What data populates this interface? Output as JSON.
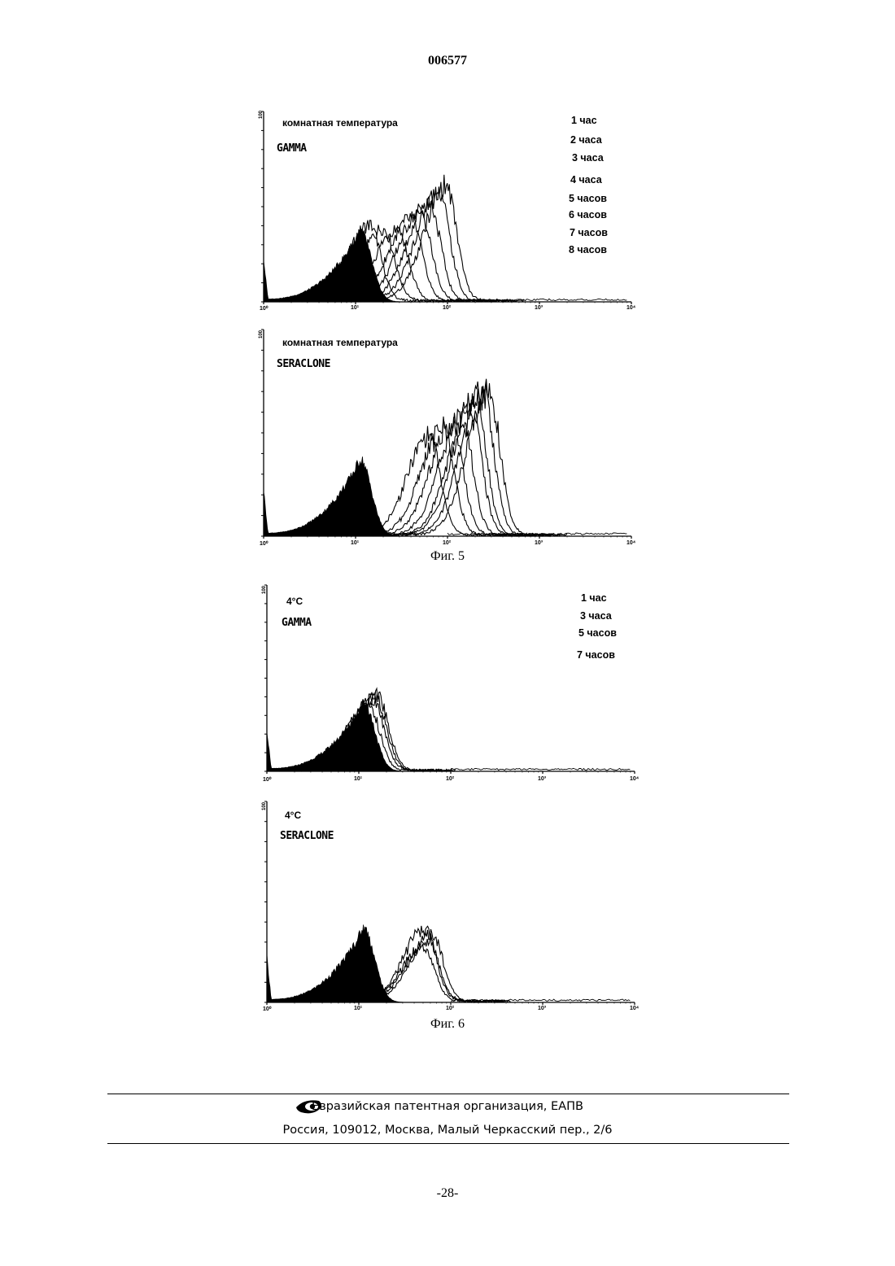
{
  "header": {
    "doc_number": "006577"
  },
  "figures": [
    {
      "caption": "Фиг. 5",
      "panels": [
        {
          "condition": "комнатная температура",
          "sample": "GAMMA",
          "y_top_label": "100",
          "legend": [
            "1 час",
            "2 часа",
            "3 часа",
            "4 часа",
            "5 часов",
            "6 часов",
            "7 часов",
            "8 часов"
          ]
        },
        {
          "condition": "комнатная температура",
          "sample": "SERACLONE",
          "y_top_label": "100",
          "legend": []
        }
      ]
    },
    {
      "caption": "Фиг. 6",
      "panels": [
        {
          "condition": "4°C",
          "sample": "GAMMA",
          "y_top_label": "100",
          "legend": [
            "1 час",
            "3 часа",
            "5 часов",
            "7 часов"
          ]
        },
        {
          "condition": "4°C",
          "sample": "SERACLONE",
          "y_top_label": "100",
          "legend": []
        }
      ]
    }
  ],
  "axis": {
    "tick_labels": [
      "10⁰",
      "10¹",
      "10²",
      "10³",
      "10⁴"
    ]
  },
  "chart_data": [
    {
      "type": "area",
      "scale": "log",
      "xlim": [
        1,
        10000
      ],
      "ylim": [
        0,
        100
      ],
      "control_peak_log": 1.05,
      "series_peaks_log": [
        1.15,
        1.3,
        1.45,
        1.6,
        1.7,
        1.8,
        1.9,
        1.98
      ],
      "series_heights": [
        0.4,
        0.38,
        0.38,
        0.43,
        0.47,
        0.52,
        0.58,
        0.6
      ]
    },
    {
      "type": "area",
      "scale": "log",
      "xlim": [
        1,
        10000
      ],
      "ylim": [
        0,
        100
      ],
      "control_peak_log": 1.05,
      "series_peaks_log": [
        1.8,
        1.95,
        2.05,
        2.15,
        2.25,
        2.3,
        2.38,
        2.45
      ],
      "series_heights": [
        0.48,
        0.52,
        0.54,
        0.57,
        0.62,
        0.66,
        0.7,
        0.7
      ]
    },
    {
      "type": "area",
      "scale": "log",
      "xlim": [
        1,
        10000
      ],
      "ylim": [
        0,
        100
      ],
      "control_peak_log": 1.05,
      "series_peaks_log": [
        1.1,
        1.15,
        1.18,
        1.2
      ],
      "series_heights": [
        0.36,
        0.38,
        0.39,
        0.4
      ]
    },
    {
      "type": "area",
      "scale": "log",
      "xlim": [
        1,
        10000
      ],
      "ylim": [
        0,
        100
      ],
      "control_peak_log": 1.05,
      "series_peaks_log": [
        1.7,
        1.75,
        1.8,
        1.72
      ],
      "series_heights": [
        0.27,
        0.3,
        0.33,
        0.36
      ]
    }
  ],
  "footer": {
    "org": "Евразийская патентная организация, ЕАПВ",
    "address": "Россия, 109012, Москва, Малый Черкасский пер., 2/6"
  },
  "page_number": "-28-"
}
